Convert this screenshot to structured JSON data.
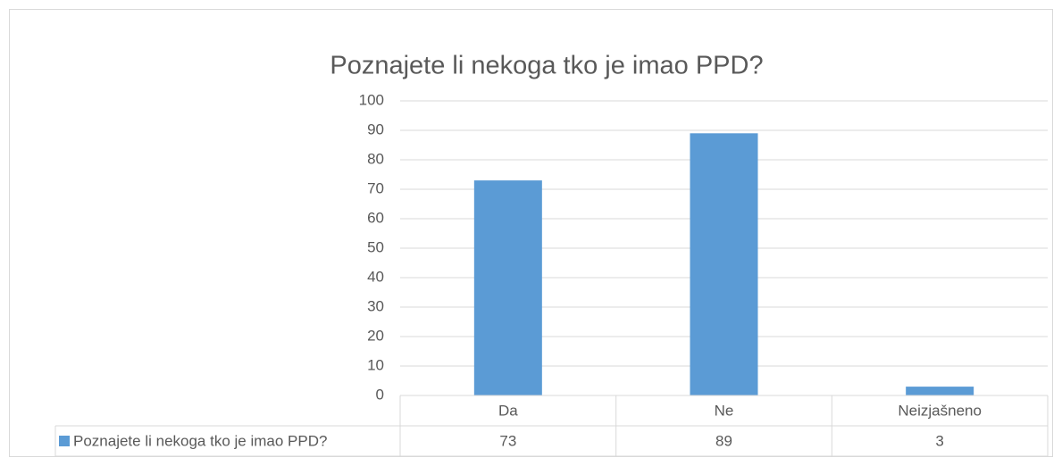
{
  "chart_data": {
    "type": "bar",
    "title": "Poznajete li nekoga tko je imao PPD?",
    "categories": [
      "Da",
      "Ne",
      "Neizjašneno"
    ],
    "series": [
      {
        "name": "Poznajete li nekoga tko je imao PPD?",
        "color": "#5b9bd5",
        "values": [
          73,
          89,
          3
        ]
      }
    ],
    "ylim": [
      0,
      100
    ],
    "yticks": [
      0,
      10,
      20,
      30,
      40,
      50,
      60,
      70,
      80,
      90,
      100
    ],
    "grid": true,
    "data_table": true
  }
}
